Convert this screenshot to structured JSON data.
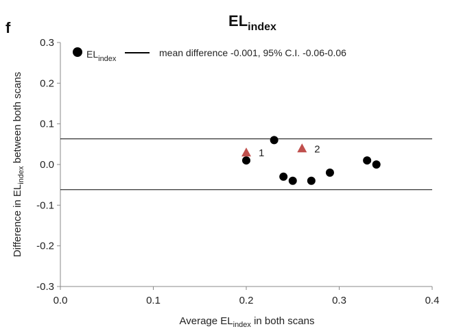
{
  "chart_data": {
    "type": "scatter",
    "panel_label": "f",
    "title": {
      "main": "EL",
      "sub": "index"
    },
    "xlabel": {
      "before": "Average EL",
      "sub": "index",
      "after": " in both scans"
    },
    "ylabel": {
      "before": "Difference in EL",
      "sub": "index",
      "after": " between both scans"
    },
    "xlim": [
      0.0,
      0.4
    ],
    "ylim": [
      -0.3,
      0.3
    ],
    "x_ticks": [
      "0.0",
      "0.1",
      "0.2",
      "0.3",
      "0.4"
    ],
    "y_ticks": [
      "-0.3",
      "-0.2",
      "-0.1",
      "0.0",
      "0.1",
      "0.2",
      "0.3"
    ],
    "x_tick_values": [
      0.0,
      0.1,
      0.2,
      0.3,
      0.4
    ],
    "y_tick_values": [
      -0.3,
      -0.2,
      -0.1,
      0.0,
      0.1,
      0.2,
      0.3
    ],
    "grid": false,
    "legend": {
      "placement": "top",
      "series_label": {
        "main": "EL",
        "sub": "index"
      },
      "line_label": "mean difference -0.001, 95% C.I. -0.06-0.06"
    },
    "series": [
      {
        "name": "EL index",
        "marker": "circle",
        "color": "#000000",
        "points": [
          {
            "x": 0.2,
            "y": 0.01
          },
          {
            "x": 0.23,
            "y": 0.06
          },
          {
            "x": 0.24,
            "y": -0.03
          },
          {
            "x": 0.25,
            "y": -0.04
          },
          {
            "x": 0.27,
            "y": -0.04
          },
          {
            "x": 0.29,
            "y": -0.02
          },
          {
            "x": 0.33,
            "y": 0.01
          },
          {
            "x": 0.34,
            "y": 0.0
          }
        ]
      }
    ],
    "outliers": {
      "marker": "triangle",
      "color": "#c0504d",
      "points": [
        {
          "x": 0.2,
          "y": 0.03,
          "label": "1"
        },
        {
          "x": 0.26,
          "y": 0.04,
          "label": "2"
        }
      ]
    },
    "reference_lines": [
      {
        "y": 0.063
      },
      {
        "y": -0.062
      }
    ]
  }
}
